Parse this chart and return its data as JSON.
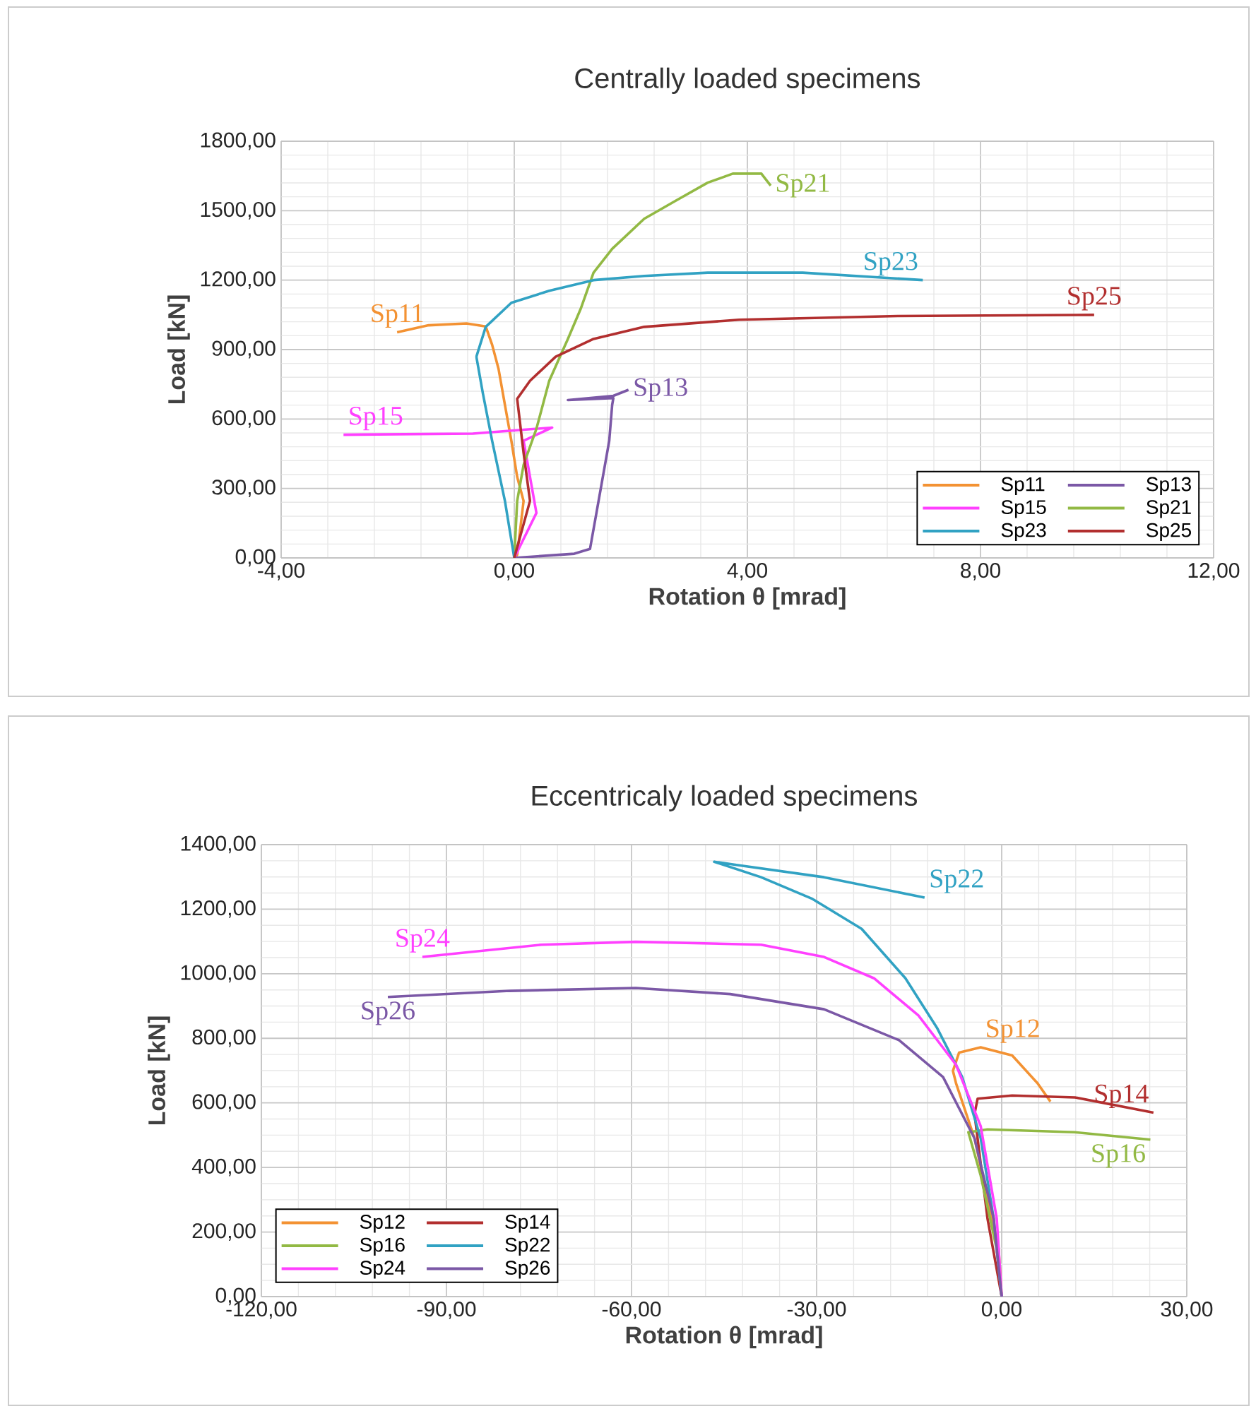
{
  "chart_data": [
    {
      "type": "line",
      "title": "Centrally loaded specimens",
      "xlabel": "Rotation θ [mrad]",
      "ylabel": "Load [kN]",
      "xlim": [
        -4,
        12
      ],
      "ylim": [
        0,
        1800
      ],
      "xticks": [
        {
          "value": -4,
          "label": "-4,00"
        },
        {
          "value": 0,
          "label": "0,00"
        },
        {
          "value": 4,
          "label": "4,00"
        },
        {
          "value": 8,
          "label": "8,00"
        },
        {
          "value": 12,
          "label": "12,00"
        }
      ],
      "yticks": [
        {
          "value": 0,
          "label": "0,00"
        },
        {
          "value": 300,
          "label": "300,00"
        },
        {
          "value": 600,
          "label": "600,00"
        },
        {
          "value": 900,
          "label": "900,00"
        },
        {
          "value": 1200,
          "label": "1200,00"
        },
        {
          "value": 1500,
          "label": "1500,00"
        },
        {
          "value": 1800,
          "label": "1800,00"
        }
      ],
      "grid": true,
      "legend": "bottom right",
      "series": [
        {
          "name": "Sp11",
          "color": "#f39233",
          "x": [
            0,
            0.05,
            0.16,
            0.05,
            -0.05,
            -0.16,
            -0.27,
            -0.38,
            -0.49,
            -0.82,
            -1.47,
            -2.01
          ],
          "values": [
            0,
            13,
            246,
            350,
            506,
            661,
            817,
            921,
            1000,
            1013,
            1005,
            975
          ]
        },
        {
          "name": "Sp13",
          "color": "#7b58a6",
          "x": [
            0,
            1.03,
            1.3,
            1.41,
            1.52,
            1.63,
            1.68,
            1.7,
            0.92,
            1.7,
            1.96
          ],
          "values": [
            0,
            18,
            39,
            194,
            350,
            506,
            661,
            690,
            682,
            700,
            726
          ]
        },
        {
          "name": "Sp15",
          "color": "#ff40ff",
          "x": [
            0,
            0.38,
            0.27,
            0.16,
            0.65,
            -0.71,
            -2.93
          ],
          "values": [
            0,
            194,
            350,
            506,
            563,
            537,
            532
          ]
        },
        {
          "name": "Sp21",
          "color": "#92b944",
          "x": [
            0,
            0.05,
            0.16,
            0.38,
            0.6,
            0.92,
            1.14,
            1.36,
            1.68,
            2.23,
            2.77,
            3.32,
            3.75,
            4.24,
            4.4
          ],
          "values": [
            0,
            246,
            402,
            558,
            765,
            946,
            1076,
            1232,
            1335,
            1465,
            1543,
            1621,
            1660,
            1660,
            1608
          ]
        },
        {
          "name": "Sp23",
          "color": "#31a2c3",
          "x": [
            0,
            -0.16,
            -0.38,
            -0.54,
            -0.65,
            -0.49,
            -0.05,
            0.6,
            1.36,
            2.23,
            3.32,
            4.95,
            7.01
          ],
          "values": [
            0,
            246,
            506,
            713,
            869,
            998,
            1102,
            1154,
            1200,
            1218,
            1232,
            1232,
            1200
          ]
        },
        {
          "name": "Sp25",
          "color": "#b22f2f",
          "x": [
            0,
            0.27,
            0.16,
            0.05,
            0.27,
            0.71,
            1.36,
            2.23,
            3.86,
            6.58,
            9.95
          ],
          "values": [
            0,
            246,
            454,
            687,
            765,
            869,
            946,
            998,
            1029,
            1045,
            1050
          ]
        }
      ],
      "annotations": [
        {
          "text": "Sp11",
          "x": -2.01,
          "y": 975
        },
        {
          "text": "Sp13",
          "x": 1.96,
          "y": 726
        },
        {
          "text": "Sp15",
          "x": -2.93,
          "y": 532
        },
        {
          "text": "Sp21",
          "x": 4.4,
          "y": 1608
        },
        {
          "text": "Sp23",
          "x": 7.01,
          "y": 1200
        },
        {
          "text": "Sp25",
          "x": 9.95,
          "y": 1050
        }
      ]
    },
    {
      "type": "line",
      "title": "Eccentricaly loaded specimens",
      "xlabel": "Rotation θ [mrad]",
      "ylabel": "Load [kN]",
      "xlim": [
        -120,
        30
      ],
      "ylim": [
        0,
        1400
      ],
      "xticks": [
        {
          "value": -120,
          "label": "-120,00"
        },
        {
          "value": -90,
          "label": "-90,00"
        },
        {
          "value": -60,
          "label": "-60,00"
        },
        {
          "value": -30,
          "label": "-30,00"
        },
        {
          "value": 0,
          "label": "0,00"
        },
        {
          "value": 30,
          "label": "30,00"
        }
      ],
      "yticks": [
        {
          "value": 0,
          "label": "0,00"
        },
        {
          "value": 200,
          "label": "200,00"
        },
        {
          "value": 400,
          "label": "400,00"
        },
        {
          "value": 600,
          "label": "600,00"
        },
        {
          "value": 800,
          "label": "800,00"
        },
        {
          "value": 1000,
          "label": "1000,00"
        },
        {
          "value": 1200,
          "label": "1200,00"
        },
        {
          "value": 1400,
          "label": "1400,00"
        }
      ],
      "grid": true,
      "legend": "bottom left",
      "series": [
        {
          "name": "Sp12",
          "color": "#f39233",
          "x": [
            0,
            -0.5,
            -4.4,
            -7.4,
            -7.9,
            -6.9,
            -3.4,
            1.7,
            5.8,
            7.9
          ],
          "values": [
            0,
            147,
            490,
            661,
            699,
            756,
            772,
            747,
            661,
            604
          ]
        },
        {
          "name": "Sp14",
          "color": "#b22f2f",
          "x": [
            0,
            -2.3,
            -4.4,
            -3.9,
            1.7,
            11.9,
            24.6
          ],
          "values": [
            0,
            242,
            566,
            613,
            623,
            617,
            570
          ]
        },
        {
          "name": "Sp16",
          "color": "#92b944",
          "x": [
            0,
            -0.8,
            -3.4,
            -5.4,
            -2.3,
            11.9,
            24.1
          ],
          "values": [
            0,
            147,
            375,
            509,
            518,
            509,
            486
          ]
        },
        {
          "name": "Sp22",
          "color": "#31a2c3",
          "x": [
            0,
            -1.3,
            -3.4,
            -6.4,
            -10.5,
            -15.6,
            -22.7,
            -30.8,
            -39.0,
            -46.6,
            -43.0,
            -28.8,
            -12.5
          ],
          "values": [
            0,
            242,
            490,
            680,
            833,
            986,
            1139,
            1233,
            1299,
            1347,
            1337,
            1299,
            1236
          ]
        },
        {
          "name": "Sp24",
          "color": "#ff40ff",
          "x": [
            0,
            -0.8,
            -3.4,
            -7.4,
            -13.5,
            -20.7,
            -28.8,
            -39.0,
            -59.3,
            -74.6,
            -93.9
          ],
          "values": [
            0,
            242,
            528,
            718,
            871,
            986,
            1052,
            1090,
            1099,
            1090,
            1052
          ]
        },
        {
          "name": "Sp26",
          "color": "#7b58a6",
          "x": [
            0,
            -1.3,
            -4.4,
            -9.5,
            -16.6,
            -28.8,
            -44.0,
            -59.3,
            -79.7,
            -99.5
          ],
          "values": [
            0,
            242,
            490,
            680,
            794,
            890,
            937,
            956,
            947,
            928
          ]
        }
      ],
      "annotations": [
        {
          "text": "Sp12",
          "x": -3.4,
          "y": 772
        },
        {
          "text": "Sp14",
          "x": 24.6,
          "y": 570
        },
        {
          "text": "Sp16",
          "x": 24.1,
          "y": 486
        },
        {
          "text": "Sp22",
          "x": -12.5,
          "y": 1236
        },
        {
          "text": "Sp24",
          "x": -93.9,
          "y": 1052
        },
        {
          "text": "Sp26",
          "x": -99.5,
          "y": 928
        }
      ]
    }
  ]
}
